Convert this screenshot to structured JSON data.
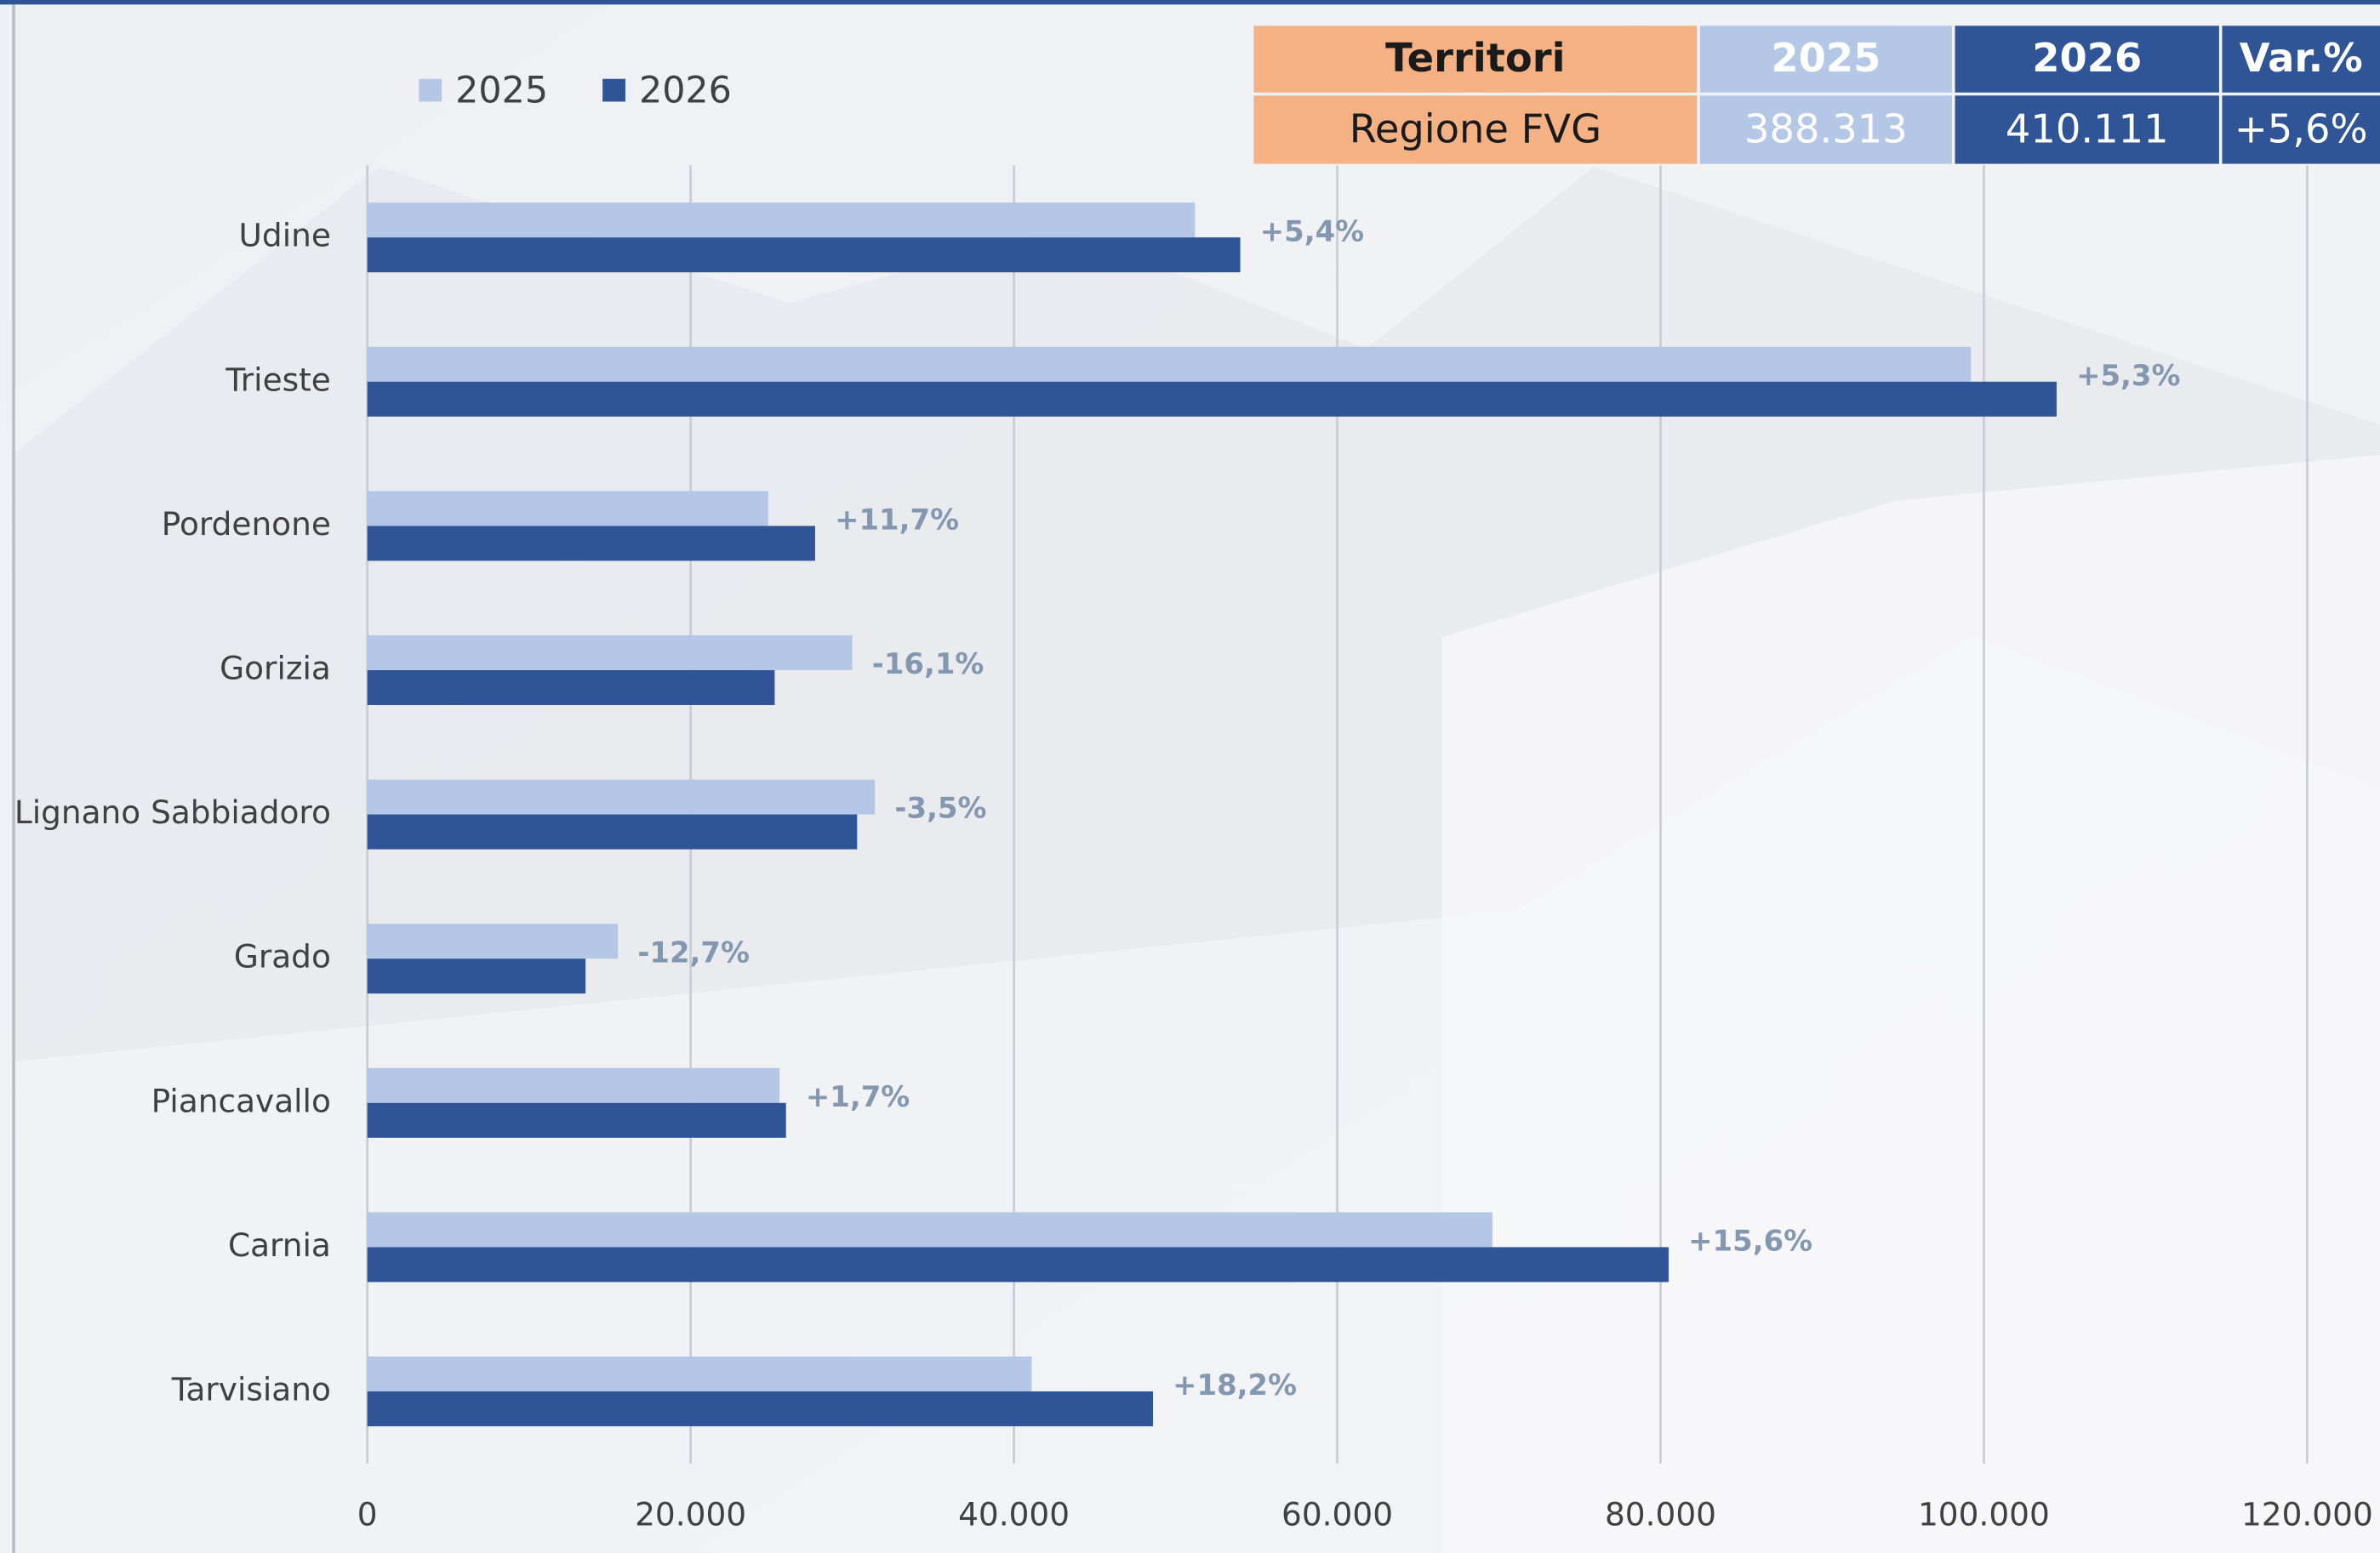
{
  "chart_data": {
    "type": "barh",
    "categories": [
      "Udine",
      "Trieste",
      "Pordenone",
      "Gorizia",
      "Lignano Sabbiadoro",
      "Grado",
      "Piancavallo",
      "Carnia",
      "Tarvisiano"
    ],
    "series": [
      {
        "name": "2025",
        "color": "#b4c7e7",
        "values": [
          51200,
          99200,
          24800,
          30000,
          31400,
          15500,
          25500,
          69600,
          41100
        ]
      },
      {
        "name": "2026",
        "color": "#2f5597",
        "values": [
          54000,
          104500,
          27700,
          25200,
          30300,
          13500,
          25900,
          80500,
          48600
        ]
      }
    ],
    "annotations": [
      "+5,4%",
      "+5,3%",
      "+11,7%",
      "-16,1%",
      "-3,5%",
      "-12,7%",
      "+1,7%",
      "+15,6%",
      "+18,2%"
    ],
    "xlim": [
      0,
      120000
    ],
    "xticks": [
      0,
      {
        "value": 20000,
        "label": "20.000"
      },
      {
        "value": 40000,
        "label": "40.000"
      },
      {
        "value": 60000,
        "label": "60.000"
      },
      {
        "value": 80000,
        "label": "80.000"
      },
      {
        "value": 100000,
        "label": "100.000"
      },
      {
        "value": 120000,
        "label": "120.000"
      }
    ],
    "grid": true,
    "legend": "top-left"
  },
  "table": {
    "header": [
      "Territori",
      "2025",
      "2026",
      "Var.%"
    ],
    "rows": [
      [
        "Regione FVG",
        "388.313",
        "410.111",
        "+5,6%"
      ]
    ]
  }
}
